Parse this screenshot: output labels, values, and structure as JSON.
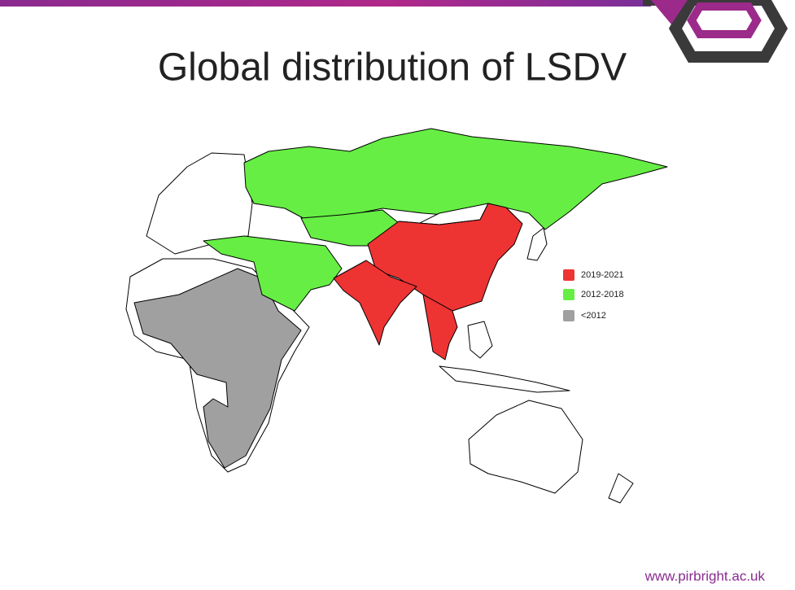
{
  "title": "Global distribution of LSDV",
  "legend": [
    {
      "label": "2019-2021",
      "color": "#ee3333"
    },
    {
      "label": "2012-2018",
      "color": "#66ee44"
    },
    {
      "label": "<2012",
      "color": "#a0a0a0"
    }
  ],
  "footer": "www.pirbright.ac.uk"
}
